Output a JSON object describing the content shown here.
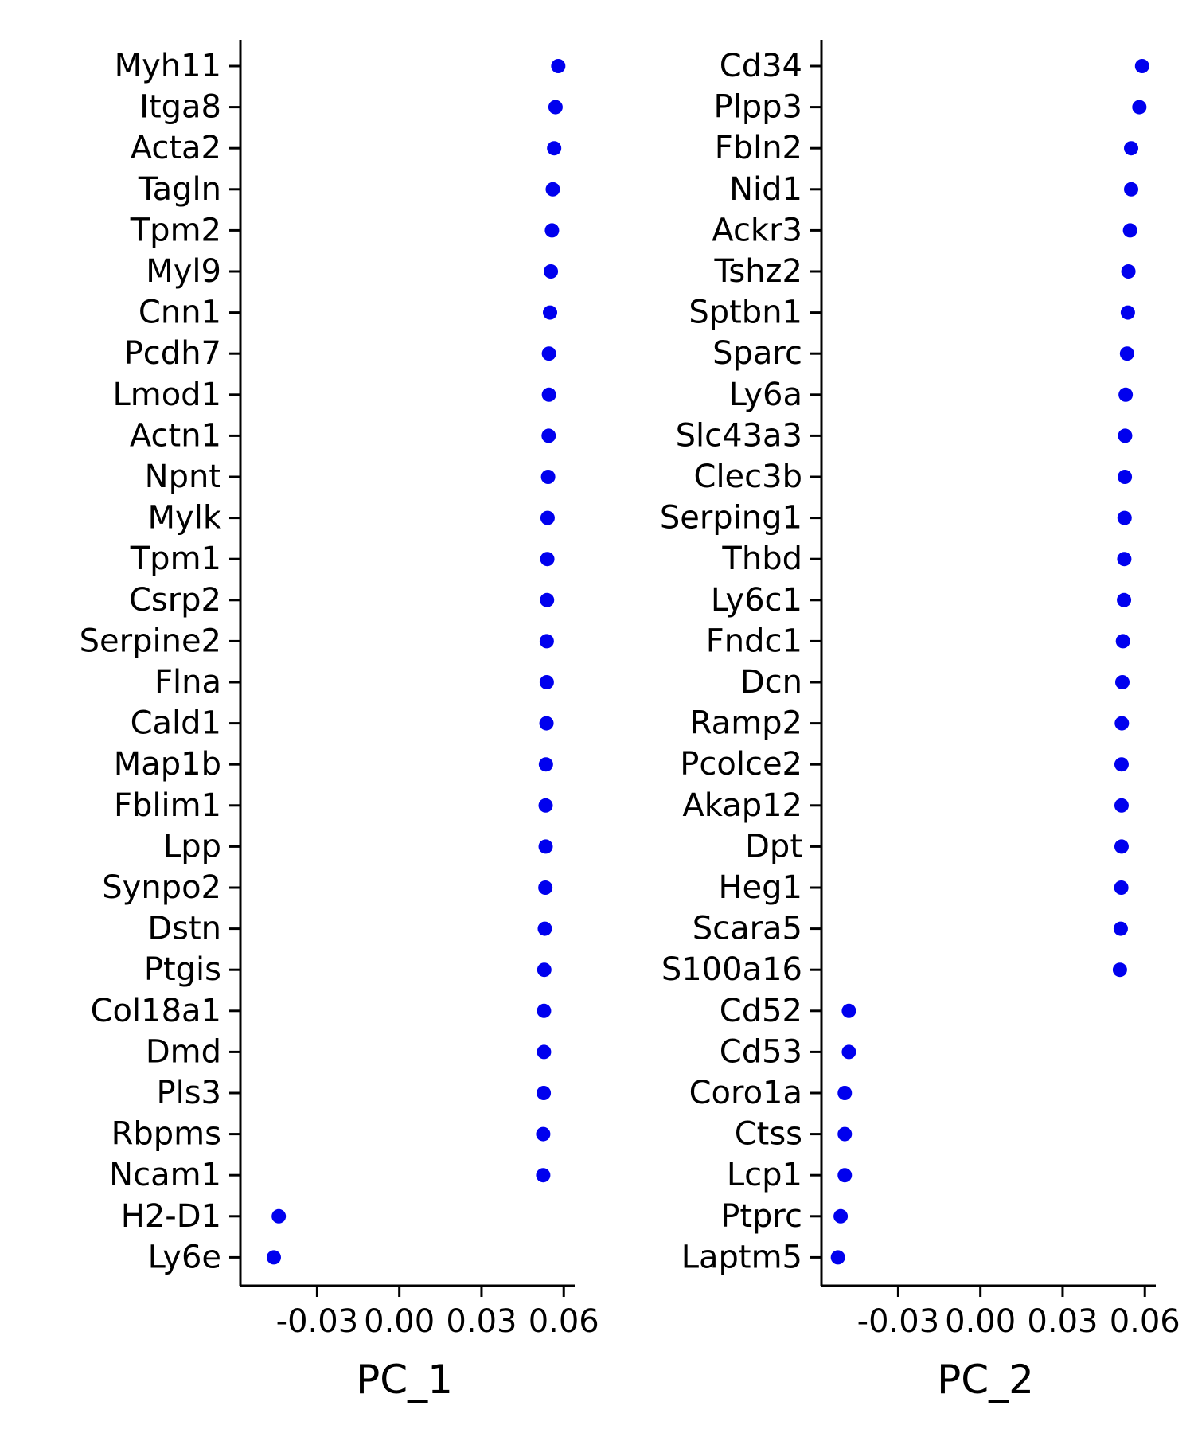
{
  "chart_data": [
    {
      "type": "scatter",
      "xlabel": "PC_1",
      "xticks": [
        "-0.03",
        "0.00",
        "0.03",
        "0.06"
      ],
      "xtick_values": [
        -0.03,
        0.0,
        0.03,
        0.06
      ],
      "xlim": [
        -0.058,
        0.064
      ],
      "point_color": "#0000ee",
      "genes": [
        "Myh11",
        "Itga8",
        "Acta2",
        "Tagln",
        "Tpm2",
        "Myl9",
        "Cnn1",
        "Pcdh7",
        "Lmod1",
        "Actn1",
        "Npnt",
        "Mylk",
        "Tpm1",
        "Csrp2",
        "Serpine2",
        "Flna",
        "Cald1",
        "Map1b",
        "Fblim1",
        "Lpp",
        "Synpo2",
        "Dstn",
        "Ptgis",
        "Col18a1",
        "Dmd",
        "Pls3",
        "Rbpms",
        "Ncam1",
        "H2-D1",
        "Ly6e"
      ],
      "values": [
        0.058,
        0.057,
        0.0565,
        0.056,
        0.0557,
        0.0553,
        0.055,
        0.0546,
        0.0546,
        0.0545,
        0.0543,
        0.0541,
        0.054,
        0.0539,
        0.0538,
        0.0538,
        0.0537,
        0.0535,
        0.0534,
        0.0534,
        0.0533,
        0.0531,
        0.0529,
        0.0528,
        0.0528,
        0.0527,
        0.0525,
        0.0525,
        -0.044,
        -0.0458
      ]
    },
    {
      "type": "scatter",
      "xlabel": "PC_2",
      "xticks": [
        "-0.03",
        "0.00",
        "0.03",
        "0.06"
      ],
      "xtick_values": [
        -0.03,
        0.0,
        0.03,
        0.06
      ],
      "xlim": [
        -0.058,
        0.064
      ],
      "point_color": "#0000ee",
      "genes": [
        "Cd34",
        "Plpp3",
        "Fbln2",
        "Nid1",
        "Ackr3",
        "Tshz2",
        "Sptbn1",
        "Sparc",
        "Ly6a",
        "Slc43a3",
        "Clec3b",
        "Serping1",
        "Thbd",
        "Ly6c1",
        "Fndc1",
        "Dcn",
        "Ramp2",
        "Pcolce2",
        "Akap12",
        "Dpt",
        "Heg1",
        "Scara5",
        "S100a16",
        "Cd52",
        "Cd53",
        "Coro1a",
        "Ctss",
        "Lcp1",
        "Ptprc",
        "Laptm5"
      ],
      "values": [
        0.059,
        0.058,
        0.055,
        0.055,
        0.0546,
        0.054,
        0.0538,
        0.0535,
        0.053,
        0.0528,
        0.0527,
        0.0526,
        0.0525,
        0.0524,
        0.052,
        0.0518,
        0.0516,
        0.0515,
        0.0515,
        0.0515,
        0.0514,
        0.0512,
        0.0509,
        -0.048,
        -0.048,
        -0.0495,
        -0.0495,
        -0.0495,
        -0.051,
        -0.052
      ]
    }
  ]
}
